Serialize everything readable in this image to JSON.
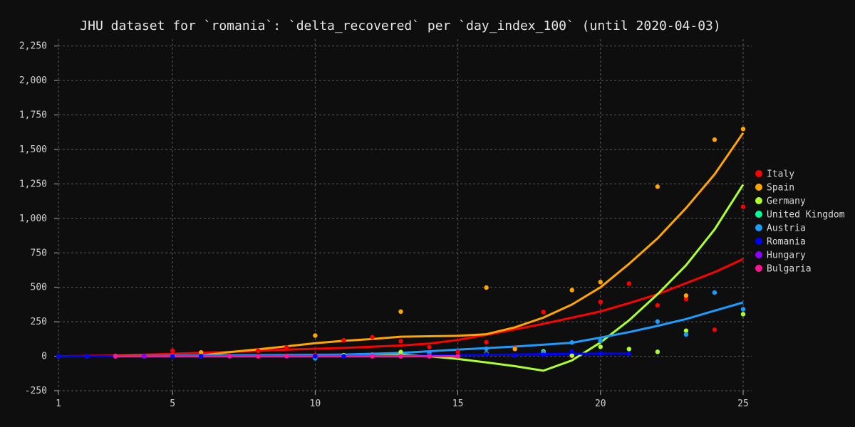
{
  "chart_data": {
    "type": "scatter",
    "title": "JHU dataset for `romania`: `delta_recovered` per `day_index_100` (until 2020-04-03)",
    "xlabel": "",
    "ylabel": "",
    "xlim": [
      1,
      25
    ],
    "ylim": [
      -250,
      2300
    ],
    "x_ticks": [
      1,
      5,
      10,
      15,
      20,
      25
    ],
    "y_ticks": [
      -250,
      0,
      250,
      500,
      750,
      1000,
      1250,
      1500,
      1750,
      2000,
      2250
    ],
    "grid": true,
    "legend_position": "right",
    "series": [
      {
        "name": "Italy",
        "color": "#ff0000",
        "points": [
          [
            1,
            0
          ],
          [
            2,
            0
          ],
          [
            3,
            0
          ],
          [
            4,
            0
          ],
          [
            5,
            40
          ],
          [
            6,
            1
          ],
          [
            7,
            0
          ],
          [
            8,
            40
          ],
          [
            9,
            64
          ],
          [
            10,
            8
          ],
          [
            11,
            116
          ],
          [
            12,
            138
          ],
          [
            13,
            109
          ],
          [
            14,
            66
          ],
          [
            15,
            33
          ],
          [
            16,
            102
          ],
          [
            17,
            58
          ],
          [
            18,
            321
          ],
          [
            19,
            2
          ],
          [
            20,
            394
          ],
          [
            21,
            527
          ],
          [
            22,
            369
          ],
          [
            23,
            414
          ],
          [
            24,
            192
          ],
          [
            25,
            1084
          ]
        ],
        "trend": [
          [
            1,
            0
          ],
          [
            3,
            5
          ],
          [
            5,
            18
          ],
          [
            7,
            32
          ],
          [
            9,
            48
          ],
          [
            11,
            60
          ],
          [
            13,
            78
          ],
          [
            14,
            92
          ],
          [
            15,
            118
          ],
          [
            16,
            155
          ],
          [
            17,
            195
          ],
          [
            18,
            235
          ],
          [
            19,
            280
          ],
          [
            20,
            325
          ],
          [
            21,
            385
          ],
          [
            22,
            450
          ],
          [
            23,
            530
          ],
          [
            24,
            610
          ],
          [
            25,
            705
          ]
        ]
      },
      {
        "name": "Spain",
        "color": "#ffa500",
        "points": [
          [
            6,
            28
          ],
          [
            10,
            150
          ],
          [
            13,
            324
          ],
          [
            16,
            498
          ],
          [
            17,
            53
          ],
          [
            19,
            480
          ],
          [
            20,
            538
          ],
          [
            22,
            1230
          ],
          [
            23,
            440
          ],
          [
            24,
            1571
          ],
          [
            25,
            1648
          ]
        ],
        "trend": [
          [
            6,
            5
          ],
          [
            7,
            30
          ],
          [
            8,
            50
          ],
          [
            9,
            72
          ],
          [
            10,
            95
          ],
          [
            11,
            112
          ],
          [
            12,
            125
          ],
          [
            13,
            142
          ],
          [
            14,
            145
          ],
          [
            15,
            148
          ],
          [
            16,
            160
          ],
          [
            17,
            210
          ],
          [
            18,
            280
          ],
          [
            19,
            375
          ],
          [
            20,
            500
          ],
          [
            21,
            670
          ],
          [
            22,
            855
          ],
          [
            23,
            1075
          ],
          [
            24,
            1320
          ],
          [
            25,
            1620
          ]
        ]
      },
      {
        "name": "Germany",
        "color": "#adff2f",
        "points": [
          [
            3,
            2
          ],
          [
            5,
            2
          ],
          [
            7,
            1
          ],
          [
            9,
            0
          ],
          [
            11,
            8
          ],
          [
            13,
            30
          ],
          [
            14,
            7
          ],
          [
            16,
            20
          ],
          [
            18,
            35
          ],
          [
            19,
            5
          ],
          [
            20,
            68
          ],
          [
            21,
            52
          ],
          [
            22,
            32
          ],
          [
            23,
            185
          ],
          [
            25,
            305
          ]
        ],
        "trend": [
          [
            3,
            2
          ],
          [
            7,
            3
          ],
          [
            11,
            5
          ],
          [
            13,
            12
          ],
          [
            14,
            0
          ],
          [
            15,
            -20
          ],
          [
            16,
            -45
          ],
          [
            17,
            -72
          ],
          [
            18,
            -105
          ],
          [
            19,
            -30
          ],
          [
            20,
            100
          ],
          [
            21,
            260
          ],
          [
            22,
            450
          ],
          [
            23,
            660
          ],
          [
            24,
            920
          ],
          [
            25,
            1245
          ]
        ]
      },
      {
        "name": "United Kingdom",
        "color": "#00ff99",
        "points": [
          [
            3,
            0
          ],
          [
            7,
            0
          ],
          [
            11,
            2
          ],
          [
            13,
            0
          ]
        ],
        "trend": [
          [
            3,
            0
          ],
          [
            13,
            0
          ]
        ]
      },
      {
        "name": "Austria",
        "color": "#1e9bff",
        "points": [
          [
            1,
            0
          ],
          [
            2,
            0
          ],
          [
            3,
            0
          ],
          [
            6,
            0
          ],
          [
            10,
            -15
          ],
          [
            12,
            12
          ],
          [
            14,
            25
          ],
          [
            16,
            55
          ],
          [
            18,
            28
          ],
          [
            19,
            100
          ],
          [
            20,
            112
          ],
          [
            22,
            252
          ],
          [
            23,
            158
          ],
          [
            24,
            462
          ],
          [
            25,
            341
          ]
        ],
        "trend": [
          [
            1,
            0
          ],
          [
            4,
            2
          ],
          [
            8,
            8
          ],
          [
            11,
            12
          ],
          [
            13,
            24
          ],
          [
            15,
            48
          ],
          [
            17,
            70
          ],
          [
            19,
            98
          ],
          [
            20,
            135
          ],
          [
            21,
            175
          ],
          [
            22,
            220
          ],
          [
            23,
            270
          ],
          [
            24,
            330
          ],
          [
            25,
            390
          ]
        ]
      },
      {
        "name": "Romania",
        "color": "#0000ff",
        "points": [
          [
            1,
            0
          ],
          [
            2,
            0
          ],
          [
            3,
            0
          ],
          [
            4,
            0
          ],
          [
            5,
            0
          ],
          [
            6,
            0
          ],
          [
            7,
            0
          ],
          [
            8,
            0
          ],
          [
            9,
            0
          ],
          [
            10,
            0
          ],
          [
            11,
            0
          ],
          [
            12,
            0
          ],
          [
            13,
            0
          ],
          [
            14,
            5
          ],
          [
            15,
            4
          ],
          [
            16,
            15
          ],
          [
            17,
            5
          ],
          [
            18,
            10
          ],
          [
            19,
            35
          ],
          [
            20,
            20
          ],
          [
            21,
            18
          ]
        ],
        "trend": [
          [
            1,
            0
          ],
          [
            13,
            2
          ],
          [
            14,
            4
          ],
          [
            15,
            8
          ],
          [
            17,
            12
          ],
          [
            19,
            18
          ],
          [
            21,
            20
          ]
        ]
      },
      {
        "name": "Hungary",
        "color": "#8b00ff",
        "points": [
          [
            4,
            0
          ],
          [
            8,
            0
          ],
          [
            12,
            0
          ],
          [
            14,
            0
          ]
        ],
        "trend": [
          [
            4,
            0
          ],
          [
            14,
            0
          ]
        ]
      },
      {
        "name": "Bulgaria",
        "color": "#ff1493",
        "points": [
          [
            3,
            0
          ],
          [
            7,
            2
          ],
          [
            8,
            0
          ],
          [
            9,
            2
          ],
          [
            12,
            0
          ],
          [
            13,
            0
          ],
          [
            14,
            0
          ],
          [
            15,
            0
          ]
        ],
        "trend": [
          [
            3,
            0
          ],
          [
            15,
            0
          ]
        ]
      }
    ]
  }
}
